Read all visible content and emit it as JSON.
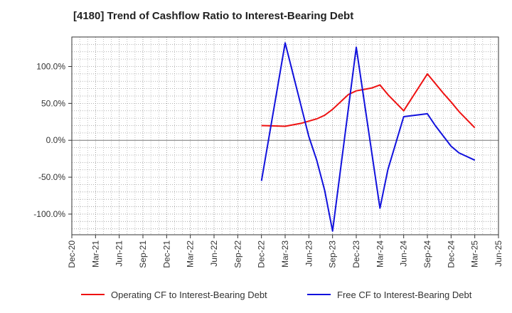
{
  "chart_data": {
    "type": "line",
    "title": "[4180]  Trend of Cashflow Ratio to Interest-Bearing Debt",
    "x_ticks": [
      "Dec-20",
      "Mar-21",
      "Jun-21",
      "Sep-21",
      "Dec-21",
      "Mar-22",
      "Jun-22",
      "Sep-22",
      "Dec-22",
      "Mar-23",
      "Jun-23",
      "Sep-23",
      "Dec-23",
      "Mar-24",
      "Jun-24",
      "Sep-24",
      "Dec-24",
      "Mar-25",
      "Jun-25"
    ],
    "y_ticks": [
      100,
      50,
      0,
      -50,
      -100
    ],
    "y_tick_labels": [
      "100.0%",
      "50.0%",
      "0.0%",
      "-50.0%",
      "-100.0%"
    ],
    "ylim": [
      -128,
      140
    ],
    "grid": true,
    "legend_position": "bottom",
    "series": [
      {
        "name": "Operating CF to Interest-Bearing Debt",
        "color": "#ee1111",
        "points": [
          {
            "x": 24,
            "y": 20
          },
          {
            "x": 27,
            "y": 19
          },
          {
            "x": 29,
            "y": 23
          },
          {
            "x": 31,
            "y": 29
          },
          {
            "x": 32,
            "y": 34
          },
          {
            "x": 33,
            "y": 42
          },
          {
            "x": 35,
            "y": 62
          },
          {
            "x": 36,
            "y": 67
          },
          {
            "x": 38,
            "y": 71
          },
          {
            "x": 39,
            "y": 75
          },
          {
            "x": 40,
            "y": 62
          },
          {
            "x": 42,
            "y": 40
          },
          {
            "x": 45,
            "y": 90
          },
          {
            "x": 47,
            "y": 64
          },
          {
            "x": 48,
            "y": 52
          },
          {
            "x": 49,
            "y": 39
          },
          {
            "x": 51,
            "y": 17
          }
        ]
      },
      {
        "name": "Free CF to Interest-Bearing Debt",
        "color": "#1111dd",
        "points": [
          {
            "x": 24,
            "y": -55
          },
          {
            "x": 27,
            "y": 132
          },
          {
            "x": 30,
            "y": 5
          },
          {
            "x": 31,
            "y": -27
          },
          {
            "x": 32,
            "y": -68
          },
          {
            "x": 33,
            "y": -123
          },
          {
            "x": 36,
            "y": 126
          },
          {
            "x": 39,
            "y": -92
          },
          {
            "x": 40,
            "y": -40
          },
          {
            "x": 42,
            "y": 32
          },
          {
            "x": 45,
            "y": 36
          },
          {
            "x": 46,
            "y": 20
          },
          {
            "x": 48,
            "y": -8
          },
          {
            "x": 49,
            "y": -17
          },
          {
            "x": 51,
            "y": -27
          }
        ]
      }
    ]
  }
}
